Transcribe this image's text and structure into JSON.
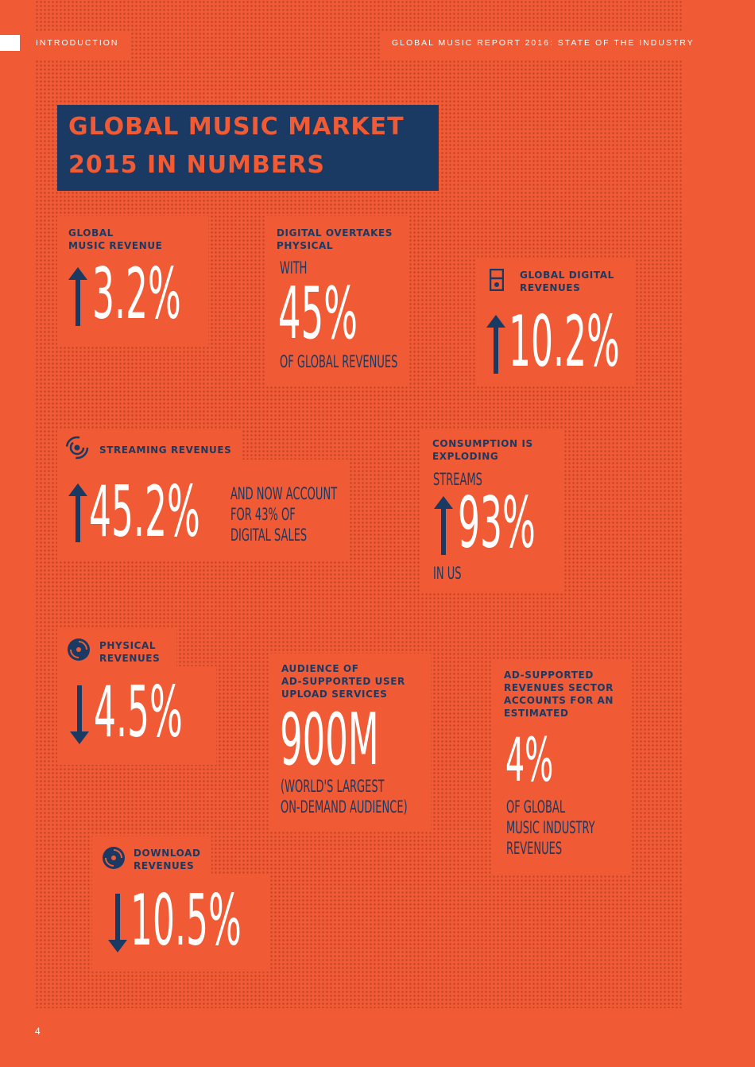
{
  "header": {
    "section": "INTRODUCTION",
    "report": "GLOBAL MUSIC REPORT 2016: STATE OF THE INDUSTRY"
  },
  "title": {
    "line1": "GLOBAL MUSIC MARKET",
    "line2": "2015 IN NUMBERS"
  },
  "stats": {
    "global_revenue": {
      "label1": "GLOBAL",
      "label2": "MUSIC REVENUE",
      "value": "3.2%",
      "direction": "up"
    },
    "digital_overtakes": {
      "label1": "DIGITAL OVERTAKES",
      "label2": "PHYSICAL",
      "pre": "WITH",
      "value": "45%",
      "post": "OF GLOBAL REVENUES"
    },
    "digital_revenues": {
      "label1": "GLOBAL DIGITAL",
      "label2": "REVENUES",
      "value": "10.2%",
      "direction": "up",
      "icon": "music-player-icon"
    },
    "streaming": {
      "label": "STREAMING REVENUES",
      "value": "45.2%",
      "direction": "up",
      "note1": "AND NOW ACCOUNT",
      "note2": "FOR 43% OF",
      "note3": "DIGITAL SALES",
      "icon": "streaming-icon"
    },
    "consumption": {
      "label1": "CONSUMPTION IS",
      "label2": "EXPLODING",
      "pre": "STREAMS",
      "value": "93%",
      "direction": "up",
      "post": "IN US"
    },
    "physical": {
      "label1": "PHYSICAL",
      "label2": "REVENUES",
      "value": "4.5%",
      "direction": "down",
      "icon": "disc-icon"
    },
    "audience": {
      "label1": "AUDIENCE OF",
      "label2": "AD-SUPPORTED USER",
      "label3": "UPLOAD SERVICES",
      "value": "900M",
      "post1": "(WORLD'S LARGEST",
      "post2": "ON-DEMAND AUDIENCE)"
    },
    "ad_supported": {
      "label1": "AD-SUPPORTED",
      "label2": "REVENUES SECTOR",
      "label3": "ACCOUNTS FOR AN",
      "label4": "ESTIMATED",
      "value": "4%",
      "post1": "OF GLOBAL",
      "post2": "MUSIC INDUSTRY",
      "post3": "REVENUES"
    },
    "download": {
      "label1": "DOWNLOAD",
      "label2": "REVENUES",
      "value": "10.5%",
      "direction": "down",
      "icon": "disc-icon"
    }
  },
  "colors": {
    "background": "#f05a34",
    "navy": "#1b3a63",
    "white": "#ffffff"
  },
  "page_number": "4"
}
